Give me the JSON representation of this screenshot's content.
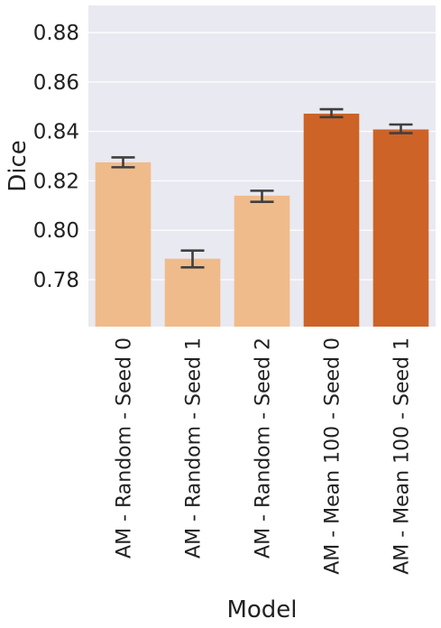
{
  "chart_data": {
    "type": "bar",
    "xlabel": "Model",
    "ylabel": "Dice",
    "ylim": [
      0.761,
      0.891
    ],
    "yticks": [
      0.78,
      0.8,
      0.82,
      0.84,
      0.86,
      0.88
    ],
    "ytick_labels": [
      "0.78",
      "0.80",
      "0.82",
      "0.84",
      "0.86",
      "0.88"
    ],
    "grid": true,
    "legend": "none",
    "categories": [
      "AM - Random - Seed 0",
      "AM - Random - Seed 1",
      "AM - Random - Seed 2",
      "AM - Mean 100 - Seed 0",
      "AM - Mean 100 - Seed 1"
    ],
    "values": [
      0.8275,
      0.7885,
      0.814,
      0.8472,
      0.8408
    ],
    "error_low": [
      0.8255,
      0.785,
      0.8115,
      0.8458,
      0.8393
    ],
    "error_high": [
      0.8295,
      0.7918,
      0.816,
      0.849,
      0.8428
    ],
    "bar_colors": [
      "#F0BB8A",
      "#F0BB8A",
      "#F0BB8A",
      "#CD6327",
      "#CD6327"
    ]
  },
  "colors": {
    "plot_background": "#E9E9F1",
    "grid": "#FFFFFF",
    "errorbar": "#3F3F3F"
  }
}
